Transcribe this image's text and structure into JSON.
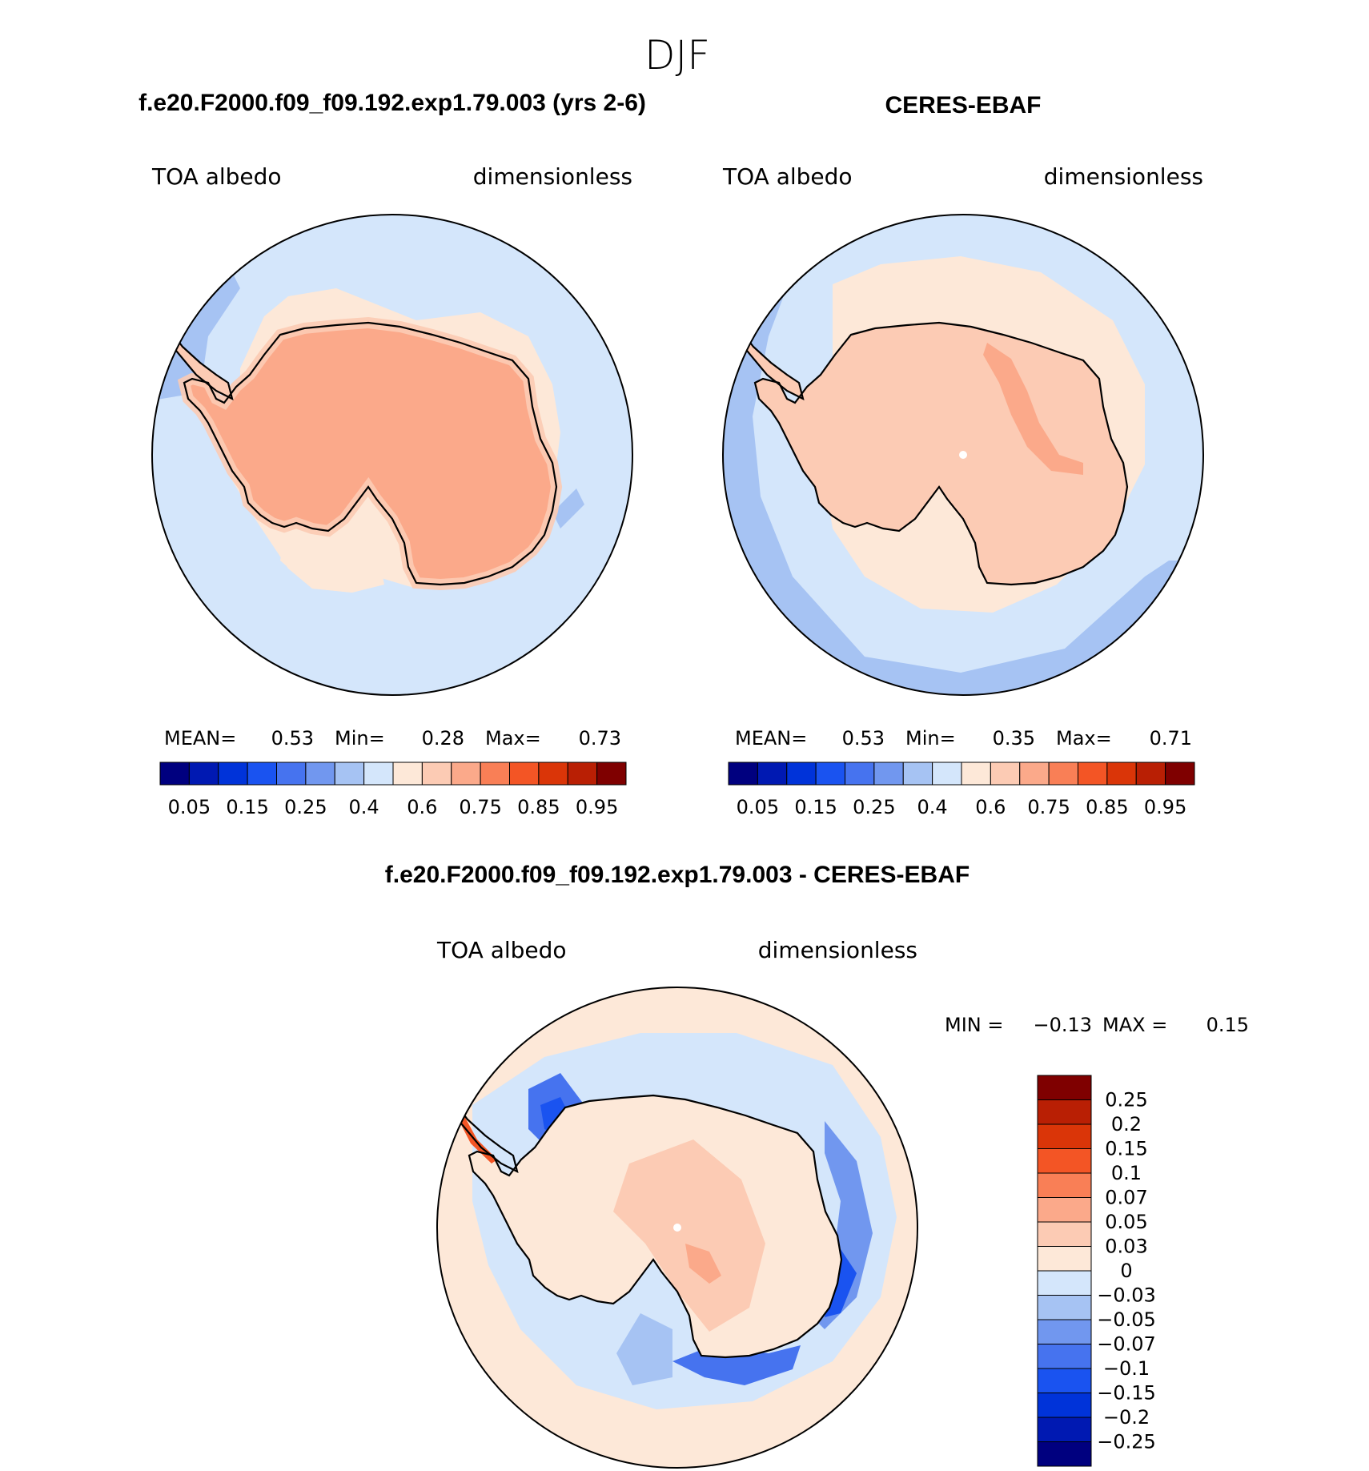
{
  "figure": {
    "title": "DJF"
  },
  "panels": [
    {
      "title": "f.e20.F2000.f09_f09.192.exp1.79.003 (yrs 2-6)",
      "variable": "TOA albedo",
      "units": "dimensionless",
      "stats": {
        "mean_label": "MEAN=",
        "mean": "0.53",
        "min_label": "Min=",
        "min": "0.28",
        "max_label": "Max=",
        "max": "0.73"
      }
    },
    {
      "title": "CERES-EBAF",
      "variable": "TOA albedo",
      "units": "dimensionless",
      "stats": {
        "mean_label": "MEAN=",
        "mean": "0.53",
        "min_label": "Min=",
        "min": "0.35",
        "max_label": "Max=",
        "max": "0.71"
      }
    }
  ],
  "colorbar": {
    "colors": [
      "#00007f",
      "#0019b2",
      "#0033d9",
      "#1a53f0",
      "#4673ef",
      "#7197ef",
      "#a6c3f3",
      "#d4e6fb",
      "#fde8d8",
      "#fccbb4",
      "#fba98a",
      "#f97f56",
      "#f35525",
      "#da3508",
      "#b91f04",
      "#7f0000"
    ],
    "ticks": [
      "0.05",
      "0.15",
      "0.25",
      "0.4",
      "0.6",
      "0.75",
      "0.85",
      "0.95"
    ]
  },
  "diff_panel": {
    "title": "f.e20.F2000.f09_f09.192.exp1.79.003 - CERES-EBAF",
    "variable": "TOA albedo",
    "units": "dimensionless",
    "stats": {
      "min_label": "MIN =",
      "min": "−0.13",
      "max_label": "MAX =",
      "max": "0.15"
    },
    "colorbar": {
      "colors": [
        "#7f0000",
        "#b91f04",
        "#da3508",
        "#f35525",
        "#f97f56",
        "#fba98a",
        "#fccbb4",
        "#fde8d8",
        "#d4e6fb",
        "#a6c3f3",
        "#7197ef",
        "#4673ef",
        "#1a53f0",
        "#0033d9",
        "#0019b2",
        "#00007f"
      ],
      "ticks": [
        "0.25",
        "0.2",
        "0.15",
        "0.1",
        "0.07",
        "0.05",
        "0.03",
        "0",
        "−0.03",
        "−0.05",
        "−0.07",
        "−0.1",
        "−0.15",
        "−0.2",
        "−0.25"
      ]
    }
  }
}
